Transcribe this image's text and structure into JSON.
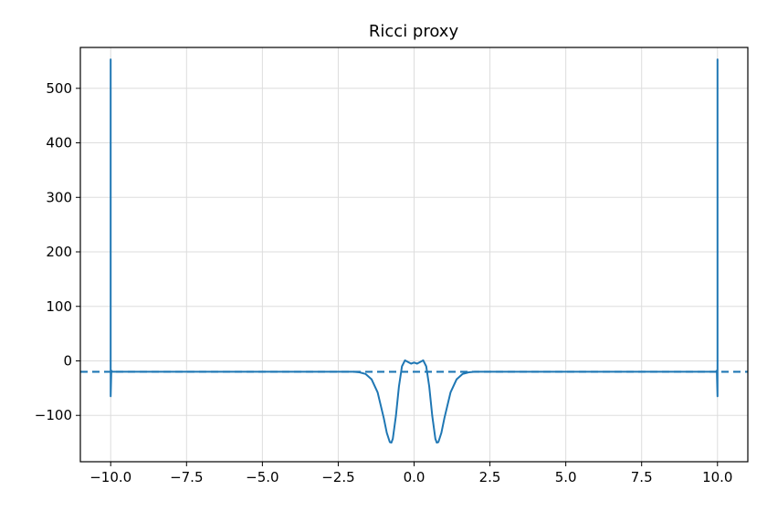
{
  "chart_data": {
    "type": "line",
    "title": "Ricci proxy",
    "xlabel": "",
    "ylabel": "",
    "xlim": [
      -11.0,
      11.0
    ],
    "ylim": [
      -185,
      575
    ],
    "xticks": [
      -10.0,
      -7.5,
      -5.0,
      -2.5,
      0.0,
      2.5,
      5.0,
      7.5,
      10.0
    ],
    "xtick_labels": [
      "−10.0",
      "−7.5",
      "−5.0",
      "−2.5",
      "0.0",
      "2.5",
      "5.0",
      "7.5",
      "10.0"
    ],
    "yticks": [
      -100,
      0,
      100,
      200,
      300,
      400,
      500
    ],
    "ytick_labels": [
      "−100",
      "0",
      "100",
      "200",
      "300",
      "400",
      "500"
    ],
    "grid": true,
    "series": [
      {
        "style": "solid",
        "color": "#1f77b4",
        "x": [
          -10.0,
          -10.0,
          -9.98,
          -9.95,
          -9.9,
          -9.5,
          -8.0,
          -6.0,
          -4.0,
          -3.0,
          -2.5,
          -2.0,
          -1.8,
          -1.6,
          -1.4,
          -1.2,
          -1.0,
          -0.9,
          -0.8,
          -0.75,
          -0.7,
          -0.6,
          -0.5,
          -0.4,
          -0.3,
          -0.2,
          -0.1,
          0.0,
          0.1,
          0.2,
          0.3,
          0.4,
          0.5,
          0.6,
          0.7,
          0.75,
          0.8,
          0.9,
          1.0,
          1.2,
          1.4,
          1.6,
          1.8,
          2.0,
          2.5,
          3.0,
          4.0,
          6.0,
          8.0,
          9.5,
          9.9,
          9.95,
          9.98,
          10.0,
          10.0
        ],
        "y": [
          553,
          -65,
          -18,
          -20,
          -20,
          -20,
          -20,
          -20,
          -20,
          -20,
          -20,
          -20,
          -21,
          -24,
          -34,
          -58,
          -105,
          -132,
          -149,
          -150,
          -143,
          -101,
          -47,
          -10,
          1,
          -2,
          -5,
          -3,
          -5,
          -2,
          1,
          -10,
          -47,
          -101,
          -143,
          -150,
          -149,
          -132,
          -105,
          -58,
          -34,
          -24,
          -21,
          -20,
          -20,
          -20,
          -20,
          -20,
          -20,
          -20,
          -20,
          -20,
          -18,
          -65,
          553
        ]
      }
    ],
    "reference_lines": [
      {
        "orientation": "horizontal",
        "y": -20,
        "style": "dashed",
        "color": "#1f77b4"
      }
    ]
  }
}
